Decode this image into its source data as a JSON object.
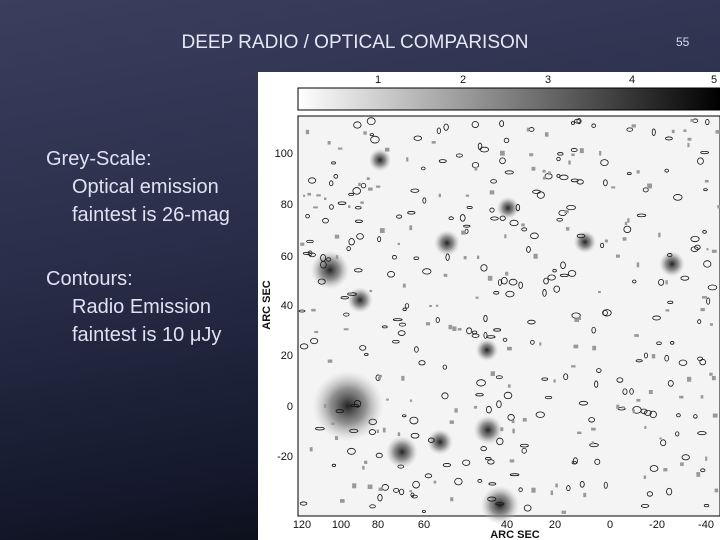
{
  "slide": {
    "title": "DEEP RADIO / OPTICAL COMPARISON",
    "page_number": "55",
    "body": [
      {
        "heading": "Grey-Scale:",
        "lines": [
          "Optical emission",
          "faintest is 26-mag"
        ]
      },
      {
        "heading": "Contours:",
        "lines": [
          "Radio Emission",
          "faintest is 10 μJy"
        ]
      }
    ],
    "figure": {
      "colorbar_ticks": [
        "1",
        "2",
        "3",
        "4",
        "5"
      ],
      "y_ticks": [
        "100",
        "80",
        "60",
        "40",
        "20",
        "0",
        "-20"
      ],
      "x_ticks": [
        "120",
        "100",
        "80",
        "60",
        "40",
        "20",
        "0",
        "-20",
        "-40"
      ],
      "y_label": "ARC SEC",
      "x_label": "ARC SEC"
    }
  }
}
